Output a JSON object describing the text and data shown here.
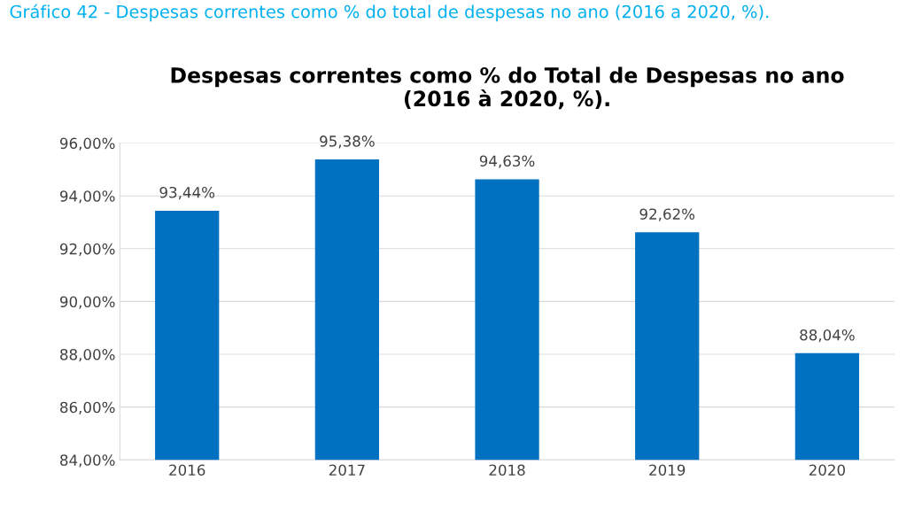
{
  "chart_data": {
    "type": "bar",
    "title": "Despesas correntes como % do Total de Despesas no ano\n(2016 à 2020, %).",
    "annotations": [
      "Gráfico 42 - Despesas correntes como % do total de despesas no ano (2016 a 2020, %)."
    ],
    "categories": [
      "2016",
      "2017",
      "2018",
      "2019",
      "2020"
    ],
    "values": [
      93.44,
      95.38,
      94.63,
      92.62,
      88.04
    ],
    "value_labels": [
      "93,44%",
      "95,38%",
      "94,63%",
      "92,62%",
      "88,04%"
    ],
    "color": "#0070c0",
    "ylim": [
      84,
      96
    ],
    "yticks": [
      {
        "value": 84,
        "label": "84,00%"
      },
      {
        "value": 86,
        "label": "86,00%"
      },
      {
        "value": 88,
        "label": "88,00%"
      },
      {
        "value": 90,
        "label": "90,00%"
      },
      {
        "value": 92,
        "label": "92,00%"
      },
      {
        "value": 94,
        "label": "94,00%"
      },
      {
        "value": 96,
        "label": "96,00%"
      }
    ],
    "grid": "y",
    "legend": false
  }
}
